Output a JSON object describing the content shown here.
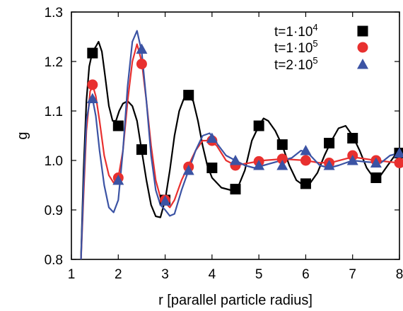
{
  "chart_data": {
    "type": "line",
    "xlabel": "r [parallel particle radius]",
    "ylabel": "g",
    "xlim": [
      1,
      8
    ],
    "ylim": [
      0.8,
      1.3
    ],
    "x_ticks": [
      1,
      2,
      3,
      4,
      5,
      6,
      7,
      8
    ],
    "y_ticks": [
      0.8,
      0.9,
      1.0,
      1.1,
      1.2,
      1.3
    ],
    "x_tick_labels": [
      "1",
      "2",
      "3",
      "4",
      "5",
      "6",
      "7",
      "8"
    ],
    "y_tick_labels": [
      "0.8",
      "0.9",
      "1.0",
      "1.1",
      "1.2",
      "1.3"
    ],
    "grid": false,
    "legend_position": "top-right",
    "series": [
      {
        "name_base": "t=1·10",
        "name_exp": "4",
        "color": "#000000",
        "marker": "square",
        "curve": [
          [
            1.2,
            0.79
          ],
          [
            1.26,
            0.98
          ],
          [
            1.32,
            1.12
          ],
          [
            1.38,
            1.19
          ],
          [
            1.45,
            1.22
          ],
          [
            1.52,
            1.23
          ],
          [
            1.58,
            1.24
          ],
          [
            1.65,
            1.22
          ],
          [
            1.72,
            1.17
          ],
          [
            1.8,
            1.11
          ],
          [
            1.88,
            1.08
          ],
          [
            1.95,
            1.08
          ],
          [
            2.02,
            1.1
          ],
          [
            2.1,
            1.115
          ],
          [
            2.2,
            1.12
          ],
          [
            2.3,
            1.11
          ],
          [
            2.4,
            1.08
          ],
          [
            2.5,
            1.02
          ],
          [
            2.6,
            0.96
          ],
          [
            2.7,
            0.91
          ],
          [
            2.8,
            0.887
          ],
          [
            2.9,
            0.885
          ],
          [
            3.0,
            0.92
          ],
          [
            3.1,
            0.98
          ],
          [
            3.2,
            1.05
          ],
          [
            3.3,
            1.1
          ],
          [
            3.4,
            1.125
          ],
          [
            3.5,
            1.13
          ],
          [
            3.6,
            1.12
          ],
          [
            3.7,
            1.08
          ],
          [
            3.8,
            1.03
          ],
          [
            3.9,
            0.99
          ],
          [
            4.0,
            0.965
          ],
          [
            4.2,
            0.945
          ],
          [
            4.4,
            0.94
          ],
          [
            4.55,
            0.945
          ],
          [
            4.7,
            0.98
          ],
          [
            4.85,
            1.04
          ],
          [
            5.0,
            1.07
          ],
          [
            5.1,
            1.085
          ],
          [
            5.2,
            1.08
          ],
          [
            5.35,
            1.06
          ],
          [
            5.5,
            1.03
          ],
          [
            5.65,
            0.99
          ],
          [
            5.8,
            0.96
          ],
          [
            5.95,
            0.95
          ],
          [
            6.1,
            0.955
          ],
          [
            6.25,
            0.975
          ],
          [
            6.4,
            1.01
          ],
          [
            6.55,
            1.04
          ],
          [
            6.7,
            1.065
          ],
          [
            6.85,
            1.07
          ],
          [
            7.0,
            1.05
          ],
          [
            7.15,
            1.02
          ],
          [
            7.3,
            0.985
          ],
          [
            7.45,
            0.965
          ],
          [
            7.6,
            0.97
          ],
          [
            7.75,
            0.99
          ],
          [
            7.9,
            1.01
          ],
          [
            8.0,
            1.015
          ]
        ],
        "points": [
          [
            1.45,
            1.217
          ],
          [
            2.0,
            1.07
          ],
          [
            2.5,
            1.022
          ],
          [
            3.0,
            0.92
          ],
          [
            3.5,
            1.132
          ],
          [
            4.0,
            0.985
          ],
          [
            4.5,
            0.942
          ],
          [
            5.0,
            1.07
          ],
          [
            5.5,
            1.032
          ],
          [
            6.0,
            0.953
          ],
          [
            6.5,
            1.035
          ],
          [
            7.0,
            1.045
          ],
          [
            7.5,
            0.965
          ],
          [
            8.0,
            1.015
          ]
        ]
      },
      {
        "name_base": "t=1·10",
        "name_exp": "5",
        "color": "#e8302f",
        "marker": "circle",
        "curve": [
          [
            1.2,
            0.79
          ],
          [
            1.26,
            0.93
          ],
          [
            1.32,
            1.06
          ],
          [
            1.4,
            1.14
          ],
          [
            1.46,
            1.15
          ],
          [
            1.52,
            1.13
          ],
          [
            1.6,
            1.08
          ],
          [
            1.7,
            1.01
          ],
          [
            1.8,
            0.97
          ],
          [
            1.9,
            0.955
          ],
          [
            2.0,
            0.965
          ],
          [
            2.1,
            1.02
          ],
          [
            2.2,
            1.12
          ],
          [
            2.3,
            1.2
          ],
          [
            2.4,
            1.235
          ],
          [
            2.5,
            1.2
          ],
          [
            2.6,
            1.12
          ],
          [
            2.7,
            1.03
          ],
          [
            2.8,
            0.96
          ],
          [
            2.9,
            0.925
          ],
          [
            3.0,
            0.915
          ],
          [
            3.1,
            0.905
          ],
          [
            3.2,
            0.92
          ],
          [
            3.35,
            0.96
          ],
          [
            3.5,
            0.99
          ],
          [
            3.65,
            1.02
          ],
          [
            3.8,
            1.04
          ],
          [
            3.95,
            1.04
          ],
          [
            4.1,
            1.03
          ],
          [
            4.3,
            1.0
          ],
          [
            4.5,
            0.99
          ],
          [
            4.8,
            0.995
          ],
          [
            5.1,
            1.0
          ],
          [
            5.5,
            1.003
          ],
          [
            6.0,
            1.0
          ],
          [
            6.3,
            0.995
          ],
          [
            6.6,
            0.997
          ],
          [
            7.0,
            1.007
          ],
          [
            7.5,
            1.0
          ],
          [
            8.0,
            0.995
          ]
        ],
        "points": [
          [
            1.45,
            1.153
          ],
          [
            2.0,
            0.965
          ],
          [
            2.5,
            1.195
          ],
          [
            3.0,
            0.92
          ],
          [
            3.5,
            0.987
          ],
          [
            4.0,
            1.04
          ],
          [
            4.5,
            0.99
          ],
          [
            5.0,
            0.998
          ],
          [
            5.5,
            1.003
          ],
          [
            6.0,
            1.0
          ],
          [
            6.5,
            0.995
          ],
          [
            7.0,
            1.01
          ],
          [
            7.5,
            1.0
          ],
          [
            8.0,
            0.995
          ]
        ]
      },
      {
        "name_base": "t=2·10",
        "name_exp": "5",
        "color": "#3b53a4",
        "marker": "triangle",
        "curve": [
          [
            1.2,
            0.79
          ],
          [
            1.26,
            0.95
          ],
          [
            1.32,
            1.08
          ],
          [
            1.4,
            1.125
          ],
          [
            1.46,
            1.12
          ],
          [
            1.52,
            1.09
          ],
          [
            1.6,
            1.02
          ],
          [
            1.7,
            0.95
          ],
          [
            1.8,
            0.905
          ],
          [
            1.9,
            0.895
          ],
          [
            2.0,
            0.92
          ],
          [
            2.1,
            1.02
          ],
          [
            2.2,
            1.15
          ],
          [
            2.3,
            1.24
          ],
          [
            2.4,
            1.262
          ],
          [
            2.5,
            1.22
          ],
          [
            2.6,
            1.12
          ],
          [
            2.7,
            1.01
          ],
          [
            2.8,
            0.94
          ],
          [
            2.9,
            0.91
          ],
          [
            3.0,
            0.9
          ],
          [
            3.1,
            0.888
          ],
          [
            3.2,
            0.892
          ],
          [
            3.35,
            0.94
          ],
          [
            3.5,
            0.98
          ],
          [
            3.65,
            1.02
          ],
          [
            3.8,
            1.05
          ],
          [
            3.95,
            1.055
          ],
          [
            4.1,
            1.035
          ],
          [
            4.3,
            1.01
          ],
          [
            4.5,
            1.0
          ],
          [
            4.7,
            0.99
          ],
          [
            4.9,
            0.985
          ],
          [
            5.1,
            0.99
          ],
          [
            5.4,
            0.998
          ],
          [
            5.7,
            1.005
          ],
          [
            5.9,
            1.02
          ],
          [
            6.05,
            1.015
          ],
          [
            6.3,
            0.99
          ],
          [
            6.5,
            0.985
          ],
          [
            6.7,
            0.99
          ],
          [
            7.0,
            1.0
          ],
          [
            7.3,
            0.997
          ],
          [
            7.6,
            0.995
          ],
          [
            7.8,
            1.01
          ],
          [
            8.0,
            1.015
          ]
        ],
        "points": [
          [
            1.45,
            1.125
          ],
          [
            2.0,
            0.96
          ],
          [
            2.5,
            1.225
          ],
          [
            3.0,
            0.918
          ],
          [
            3.5,
            0.98
          ],
          [
            4.0,
            1.045
          ],
          [
            4.5,
            1.0
          ],
          [
            5.0,
            0.99
          ],
          [
            5.5,
            0.99
          ],
          [
            6.0,
            1.02
          ],
          [
            6.5,
            0.99
          ],
          [
            7.0,
            1.0
          ],
          [
            7.5,
            0.995
          ],
          [
            8.0,
            1.015
          ]
        ]
      }
    ]
  }
}
